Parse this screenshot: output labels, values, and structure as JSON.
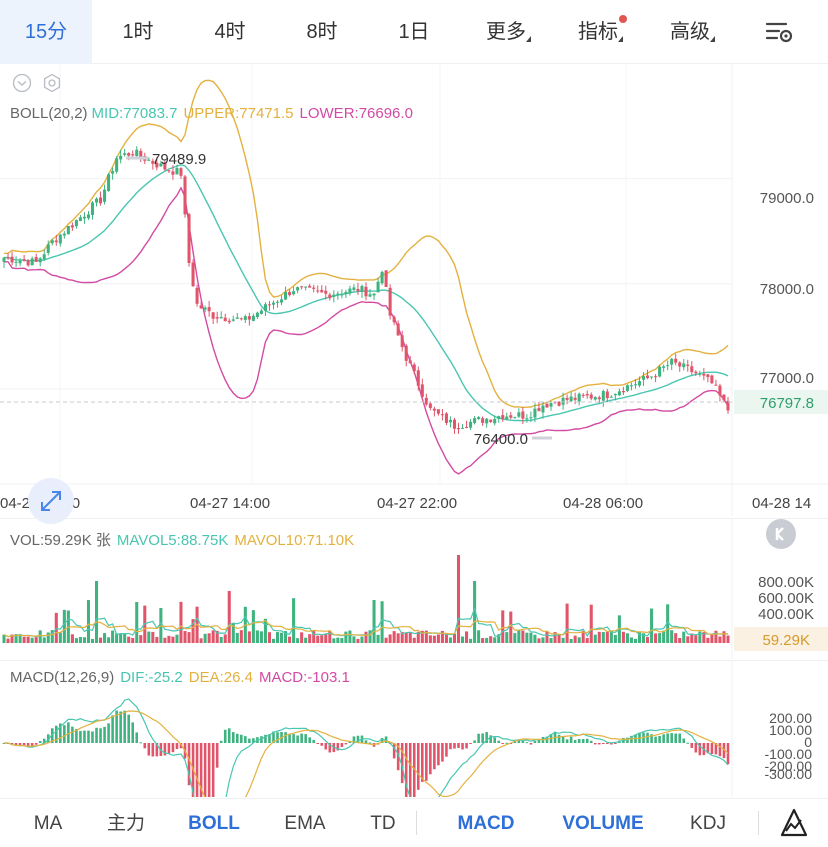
{
  "timeframes": [
    {
      "label": "15分",
      "active": true
    },
    {
      "label": "1时"
    },
    {
      "label": "4时"
    },
    {
      "label": "8时"
    },
    {
      "label": "1日"
    },
    {
      "label": "更多",
      "caret": true
    },
    {
      "label": "指标",
      "caret": true,
      "dot": true
    },
    {
      "label": "高级",
      "caret": true
    }
  ],
  "boll_legend": {
    "name": "BOLL(20,2)",
    "mid": "MID:77083.7",
    "upper": "UPPER:77471.5",
    "lower": "LOWER:76696.0"
  },
  "price_axis": [
    "79000.0",
    "78000.0",
    "77000.0"
  ],
  "current_price": "76797.8",
  "max_label": "79489.9",
  "min_label": "76400.0",
  "time_axis": [
    "04-27 06:00",
    "04-27 14:00",
    "04-27 22:00",
    "04-28 06:00",
    "04-28 14"
  ],
  "vol_legend": {
    "vol": "VOL:59.29K 张",
    "mavol5": "MAVOL5:88.75K",
    "mavol10": "MAVOL10:71.10K"
  },
  "vol_axis": [
    "800.00K",
    "600.00K",
    "400.00K"
  ],
  "current_vol": "59.29K",
  "macd_legend": {
    "name": "MACD(12,26,9)",
    "dif": "DIF:-25.2",
    "dea": "DEA:26.4",
    "macd": "MACD:-103.1"
  },
  "macd_axis": [
    "200.00",
    "100.00",
    "0",
    "-100.00",
    "-200.00",
    "-300.00"
  ],
  "indicators": [
    {
      "label": "MA"
    },
    {
      "label": "主力"
    },
    {
      "label": "BOLL",
      "active": true
    },
    {
      "label": "EMA"
    },
    {
      "label": "TD"
    },
    {
      "label": "MACD",
      "active": true
    },
    {
      "label": "VOLUME",
      "active": true
    },
    {
      "label": "KDJ"
    }
  ],
  "colors": {
    "up": "#3fb37f",
    "down": "#e0556a",
    "mid": "#49c6b1",
    "upper": "#e3b13f",
    "lower": "#d24ba3",
    "accent": "#2f6fd8"
  },
  "icons": {
    "settings": "settings-sliders-icon",
    "expand": "expand-arrows-icon",
    "k_line": "k-line-icon",
    "draw": "draw-tool-icon",
    "collapse": "chevron-down-icon",
    "gear": "gear-icon"
  }
}
